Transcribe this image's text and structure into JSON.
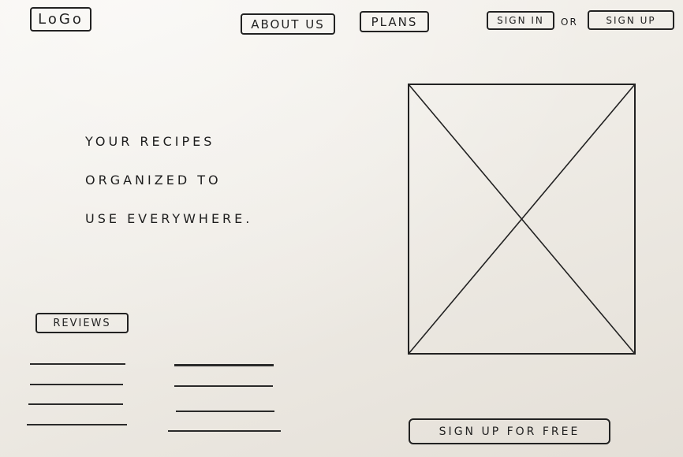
{
  "header": {
    "logo_label": "LoGo",
    "nav": {
      "about_label": "About us",
      "plans_label": "Plans"
    },
    "auth": {
      "signin_label": "Sign in",
      "or_label": "or",
      "signup_label": "Sign up"
    }
  },
  "hero": {
    "lines": [
      "Your recipes",
      "organized to",
      "use everywhere."
    ]
  },
  "reviews": {
    "label": "Reviews"
  },
  "cta": {
    "label": "Sign up for free"
  },
  "image": {
    "placeholder_icon": "image-placeholder-icon"
  }
}
